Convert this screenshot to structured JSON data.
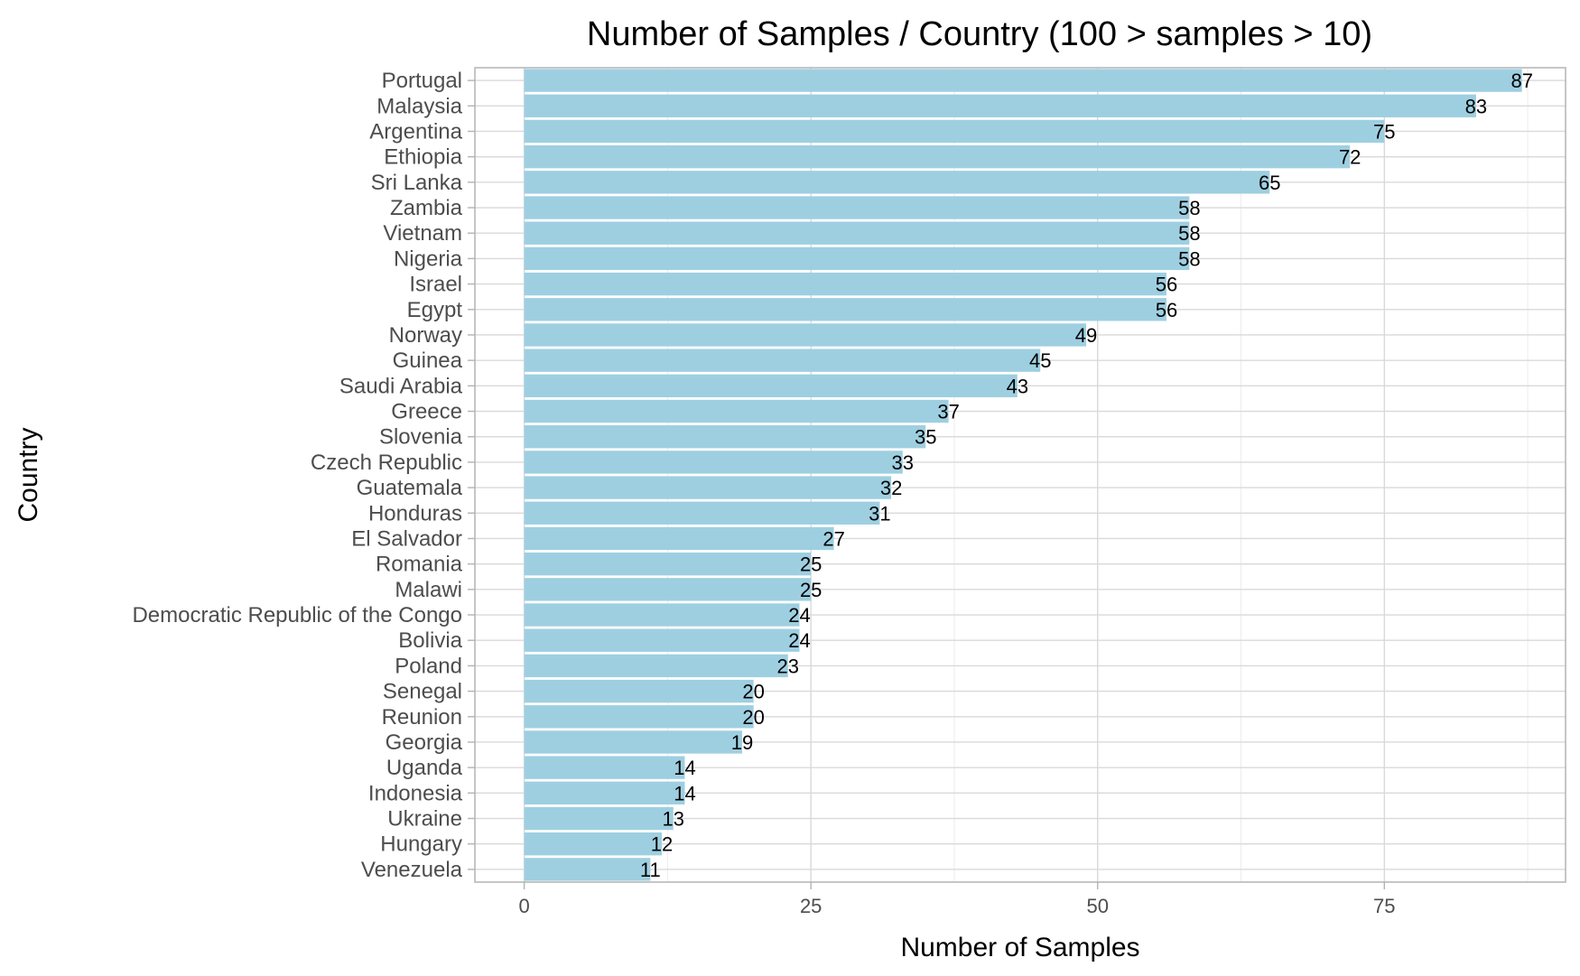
{
  "chart_data": {
    "type": "bar",
    "orientation": "horizontal",
    "title": "Number of Samples / Country (100 > samples > 10)",
    "xlabel": "Number of Samples",
    "ylabel": "Country",
    "xlim": [
      -4.3,
      90.8
    ],
    "xticks": [
      0,
      25,
      50,
      75
    ],
    "xtick_labels": [
      "0",
      "25",
      "50",
      "75"
    ],
    "grid": true,
    "bar_color": "#9ecfe1",
    "categories": [
      "Portugal",
      "Malaysia",
      "Argentina",
      "Ethiopia",
      "Sri Lanka",
      "Zambia",
      "Vietnam",
      "Nigeria",
      "Israel",
      "Egypt",
      "Norway",
      "Guinea",
      "Saudi Arabia",
      "Greece",
      "Slovenia",
      "Czech Republic",
      "Guatemala",
      "Honduras",
      "El Salvador",
      "Romania",
      "Malawi",
      "Democratic Republic of the Congo",
      "Bolivia",
      "Poland",
      "Senegal",
      "Reunion",
      "Georgia",
      "Uganda",
      "Indonesia",
      "Ukraine",
      "Hungary",
      "Venezuela"
    ],
    "values": [
      87,
      83,
      75,
      72,
      65,
      58,
      58,
      58,
      56,
      56,
      49,
      45,
      43,
      37,
      35,
      33,
      32,
      31,
      27,
      25,
      25,
      24,
      24,
      23,
      20,
      20,
      19,
      14,
      14,
      13,
      12,
      11
    ],
    "value_labels": [
      "87",
      "83",
      "75",
      "72",
      "65",
      "58",
      "58",
      "58",
      "56",
      "56",
      "49",
      "45",
      "43",
      "37",
      "35",
      "33",
      "32",
      "31",
      "27",
      "25",
      "25",
      "24",
      "24",
      "23",
      "20",
      "20",
      "19",
      "14",
      "14",
      "13",
      "12",
      "11"
    ]
  }
}
